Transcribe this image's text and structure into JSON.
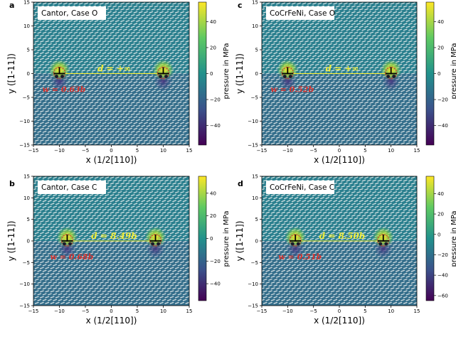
{
  "colors": {
    "background": "#2a7f8e",
    "lower_half": "#3c6189",
    "atom": "#f4f6f4",
    "yellow": "#f5ec2a",
    "red": "#d8312c",
    "cmap": [
      "#440154",
      "#3b528b",
      "#21918c",
      "#5ec962",
      "#fde725"
    ]
  },
  "chart_data": [
    {
      "type": "heatmap",
      "panel_label": "a",
      "title": "Cantor, Case O",
      "xlabel": "x (1/2[110])",
      "ylabel": "y ([1-11])",
      "xlim": [
        -15,
        15
      ],
      "ylim": [
        -15,
        15
      ],
      "x_ticks": [
        "−15",
        "−10",
        "−5",
        "0",
        "5",
        "10",
        "15"
      ],
      "y_ticks": [
        "15",
        "10",
        "5",
        "0",
        "−5",
        "−10",
        "−15"
      ],
      "dislocations_x": [
        -10,
        10
      ],
      "d_annotation": "d = +∞",
      "w_annotation": "w = 0.63b",
      "colorbar": {
        "label": "pressure in MPa",
        "range": [
          -55,
          55
        ],
        "ticks": [
          "40",
          "20",
          "0",
          "−20",
          "−40"
        ],
        "tick_values": [
          40,
          20,
          0,
          -20,
          -40
        ]
      }
    },
    {
      "type": "heatmap",
      "panel_label": "c",
      "title": "CoCrFeNi, Case O",
      "xlabel": "x (1/2[110])",
      "ylabel": "y ([1-11])",
      "xlim": [
        -15,
        15
      ],
      "ylim": [
        -15,
        15
      ],
      "x_ticks": [
        "−15",
        "−10",
        "−5",
        "0",
        "5",
        "10",
        "15"
      ],
      "y_ticks": [
        "15",
        "10",
        "5",
        "0",
        "−5",
        "−10",
        "−15"
      ],
      "dislocations_x": [
        -10,
        10
      ],
      "d_annotation": "d = +∞",
      "w_annotation": "w = 0.52b",
      "colorbar": {
        "label": "pressure in MPa",
        "range": [
          -55,
          55
        ],
        "ticks": [
          "40",
          "20",
          "0",
          "−20",
          "−40"
        ],
        "tick_values": [
          40,
          20,
          0,
          -20,
          -40
        ]
      }
    },
    {
      "type": "heatmap",
      "panel_label": "b",
      "title": "Cantor, Case C",
      "xlabel": "x (1/2[110])",
      "ylabel": "y ([1-11])",
      "xlim": [
        -15,
        15
      ],
      "ylim": [
        -15,
        15
      ],
      "x_ticks": [
        "−15",
        "−10",
        "−5",
        "0",
        "5",
        "10",
        "15"
      ],
      "y_ticks": [
        "15",
        "10",
        "5",
        "0",
        "−5",
        "−10",
        "−15"
      ],
      "dislocations_x": [
        -8.5,
        8.5
      ],
      "d_annotation": "d = 8.49b",
      "w_annotation": "w = 0.68b",
      "colorbar": {
        "label": "pressure in MPa",
        "range": [
          -55,
          55
        ],
        "ticks": [
          "40",
          "20",
          "0",
          "−20",
          "−40"
        ],
        "tick_values": [
          40,
          20,
          0,
          -20,
          -40
        ]
      }
    },
    {
      "type": "heatmap",
      "panel_label": "d",
      "title": "CoCrFeNi, Case C",
      "xlabel": "x (1/2[110])",
      "ylabel": "y ([1-11])",
      "xlim": [
        -15,
        15
      ],
      "ylim": [
        -15,
        15
      ],
      "x_ticks": [
        "−15",
        "−10",
        "−5",
        "0",
        "5",
        "10",
        "15"
      ],
      "y_ticks": [
        "15",
        "10",
        "5",
        "0",
        "−5",
        "−10",
        "−15"
      ],
      "dislocations_x": [
        -8.5,
        8.5
      ],
      "d_annotation": "d = 8.50b",
      "w_annotation": "w = 0.51b",
      "colorbar": {
        "label": "pressure in MPa",
        "range": [
          -65,
          57
        ],
        "ticks": [
          "40",
          "20",
          "0",
          "−20",
          "−40",
          "−60"
        ],
        "tick_values": [
          40,
          20,
          0,
          -20,
          -40,
          -60
        ]
      }
    }
  ]
}
